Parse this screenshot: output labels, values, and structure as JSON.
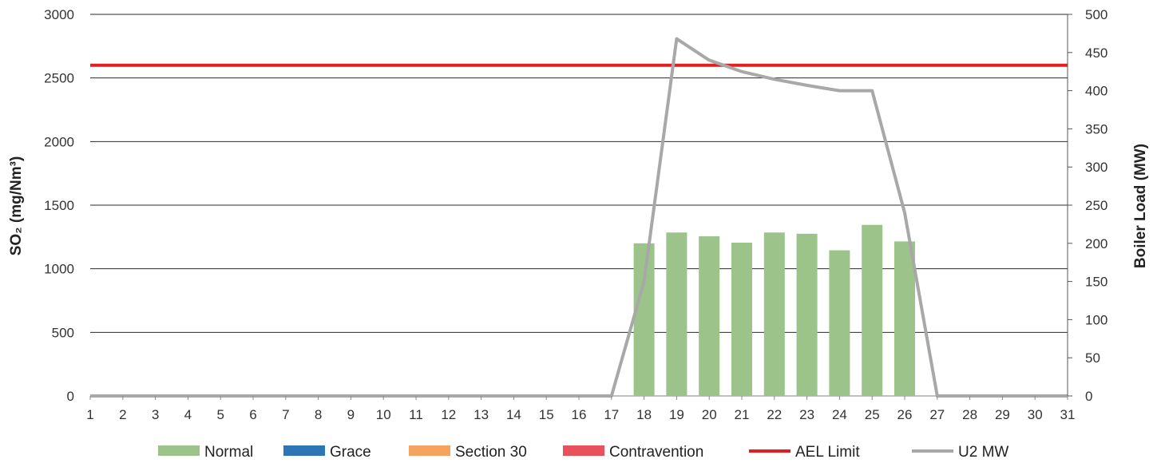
{
  "chart_data": {
    "type": "bar",
    "categories": [
      "1",
      "2",
      "3",
      "4",
      "5",
      "6",
      "7",
      "8",
      "9",
      "10",
      "11",
      "12",
      "13",
      "14",
      "15",
      "16",
      "17",
      "18",
      "19",
      "20",
      "21",
      "22",
      "23",
      "24",
      "25",
      "26",
      "27",
      "28",
      "29",
      "30",
      "31"
    ],
    "y_left": {
      "label": "SO₂ (mg/Nm³)",
      "range": [
        0,
        3000
      ],
      "ticks": [
        0,
        500,
        1000,
        1500,
        2000,
        2500,
        3000
      ]
    },
    "y_right": {
      "label": "Boiler Load (MW)",
      "range": [
        0,
        500
      ],
      "ticks": [
        0,
        50,
        100,
        150,
        200,
        250,
        300,
        350,
        400,
        450,
        500
      ]
    },
    "grid": true,
    "legend_position": "bottom",
    "series": [
      {
        "name": "Normal",
        "kind": "bar",
        "axis": "left",
        "color": "#9bc38a",
        "values": [
          0,
          0,
          0,
          0,
          0,
          0,
          0,
          0,
          0,
          0,
          0,
          0,
          0,
          0,
          0,
          0,
          0,
          1200,
          1285,
          1255,
          1205,
          1285,
          1275,
          1145,
          1345,
          1215,
          0,
          0,
          0,
          0,
          0
        ]
      },
      {
        "name": "Grace",
        "kind": "bar",
        "axis": "left",
        "color": "#2e75b6",
        "values": [
          0,
          0,
          0,
          0,
          0,
          0,
          0,
          0,
          0,
          0,
          0,
          0,
          0,
          0,
          0,
          0,
          0,
          0,
          0,
          0,
          0,
          0,
          0,
          0,
          0,
          0,
          0,
          0,
          0,
          0,
          0
        ]
      },
      {
        "name": "Section 30",
        "kind": "bar",
        "axis": "left",
        "color": "#f4a460",
        "values": [
          0,
          0,
          0,
          0,
          0,
          0,
          0,
          0,
          0,
          0,
          0,
          0,
          0,
          0,
          0,
          0,
          0,
          0,
          0,
          0,
          0,
          0,
          0,
          0,
          0,
          0,
          0,
          0,
          0,
          0,
          0
        ]
      },
      {
        "name": "Contravention",
        "kind": "bar",
        "axis": "left",
        "color": "#e8505b",
        "values": [
          0,
          0,
          0,
          0,
          0,
          0,
          0,
          0,
          0,
          0,
          0,
          0,
          0,
          0,
          0,
          0,
          0,
          0,
          0,
          0,
          0,
          0,
          0,
          0,
          0,
          0,
          0,
          0,
          0,
          0,
          0
        ]
      },
      {
        "name": "AEL Limit",
        "kind": "line",
        "axis": "left",
        "color": "#e02020",
        "values": [
          2600,
          2600,
          2600,
          2600,
          2600,
          2600,
          2600,
          2600,
          2600,
          2600,
          2600,
          2600,
          2600,
          2600,
          2600,
          2600,
          2600,
          2600,
          2600,
          2600,
          2600,
          2600,
          2600,
          2600,
          2600,
          2600,
          2600,
          2600,
          2600,
          2600,
          2600
        ]
      },
      {
        "name": "U2 MW",
        "kind": "line",
        "axis": "right",
        "color": "#a8a8a8",
        "values": [
          0,
          0,
          0,
          0,
          0,
          0,
          0,
          0,
          0,
          0,
          0,
          0,
          0,
          0,
          0,
          0,
          0,
          150,
          468,
          440,
          425,
          415,
          407,
          400,
          400,
          240,
          0,
          0,
          0,
          0,
          0
        ]
      }
    ]
  }
}
